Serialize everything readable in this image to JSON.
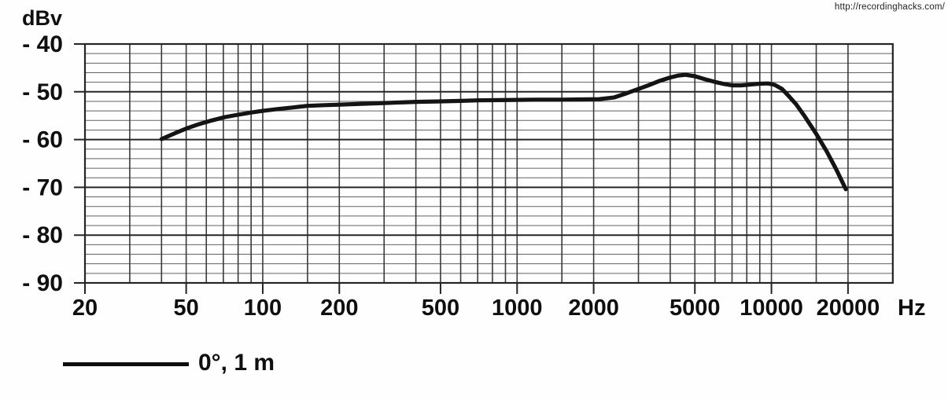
{
  "watermark": {
    "url": "http://recordinghacks.com/"
  },
  "colors": {
    "background": "#fefefe",
    "axis": "#252525",
    "grid_vertical": "#3a3a3a",
    "grid_minor": "#626262",
    "text": "#0f0f0f",
    "curve": "#141414"
  },
  "chart_data": {
    "type": "line",
    "title": "",
    "y_axis_label": "dBv",
    "x_axis_unit": "Hz",
    "x_scale": "log",
    "x_range_hz": [
      20,
      30000
    ],
    "y_range_dbv": [
      -90,
      -40
    ],
    "grid": true,
    "y_major_ticks_dbv": [
      -40,
      -50,
      -60,
      -70,
      -80,
      -90
    ],
    "y_tick_labels": [
      "- 40",
      "- 50",
      "- 60",
      "- 70",
      "- 80",
      "- 90"
    ],
    "y_minor_step_db": 2,
    "x_major_ticks_hz": [
      20,
      50,
      100,
      200,
      500,
      1000,
      2000,
      5000,
      10000,
      20000
    ],
    "x_tick_labels": [
      "20",
      "50",
      "100",
      "200",
      "500",
      "1000",
      "2000",
      "5000",
      "10000",
      "20000"
    ],
    "x_gridlines_hz": [
      20,
      30,
      40,
      50,
      60,
      70,
      80,
      90,
      100,
      150,
      200,
      300,
      400,
      500,
      600,
      700,
      800,
      900,
      1000,
      1500,
      2000,
      3000,
      4000,
      5000,
      6000,
      7000,
      8000,
      9000,
      10000,
      15000,
      20000,
      30000
    ],
    "legend": {
      "position": "bottom-left",
      "label": "0°, 1 m"
    },
    "series": [
      {
        "name": "0°, 1 m",
        "color": "#141414",
        "points_hz_dbv": [
          [
            40,
            -59.9
          ],
          [
            45,
            -58.7
          ],
          [
            50,
            -57.7
          ],
          [
            56,
            -56.8
          ],
          [
            63,
            -56.0
          ],
          [
            71,
            -55.3
          ],
          [
            80,
            -54.8
          ],
          [
            90,
            -54.35
          ],
          [
            100,
            -54.0
          ],
          [
            115,
            -53.6
          ],
          [
            130,
            -53.3
          ],
          [
            150,
            -52.95
          ],
          [
            175,
            -52.8
          ],
          [
            200,
            -52.7
          ],
          [
            250,
            -52.5
          ],
          [
            300,
            -52.35
          ],
          [
            400,
            -52.1
          ],
          [
            500,
            -52.0
          ],
          [
            600,
            -51.9
          ],
          [
            700,
            -51.8
          ],
          [
            850,
            -51.75
          ],
          [
            1000,
            -51.7
          ],
          [
            1200,
            -51.65
          ],
          [
            1500,
            -51.65
          ],
          [
            1800,
            -51.6
          ],
          [
            2100,
            -51.55
          ],
          [
            2400,
            -51.2
          ],
          [
            2700,
            -50.3
          ],
          [
            3000,
            -49.4
          ],
          [
            3300,
            -48.6
          ],
          [
            3600,
            -47.8
          ],
          [
            4000,
            -47.0
          ],
          [
            4300,
            -46.6
          ],
          [
            4600,
            -46.45
          ],
          [
            5000,
            -46.75
          ],
          [
            5500,
            -47.4
          ],
          [
            6000,
            -47.95
          ],
          [
            6500,
            -48.35
          ],
          [
            7000,
            -48.65
          ],
          [
            7600,
            -48.65
          ],
          [
            8200,
            -48.5
          ],
          [
            9000,
            -48.3
          ],
          [
            9700,
            -48.25
          ],
          [
            10300,
            -48.55
          ],
          [
            11000,
            -49.4
          ],
          [
            11700,
            -50.9
          ],
          [
            12500,
            -52.6
          ],
          [
            13500,
            -55.1
          ],
          [
            15000,
            -58.8
          ],
          [
            16500,
            -62.5
          ],
          [
            18000,
            -66.3
          ],
          [
            19600,
            -70.4
          ]
        ]
      }
    ]
  }
}
